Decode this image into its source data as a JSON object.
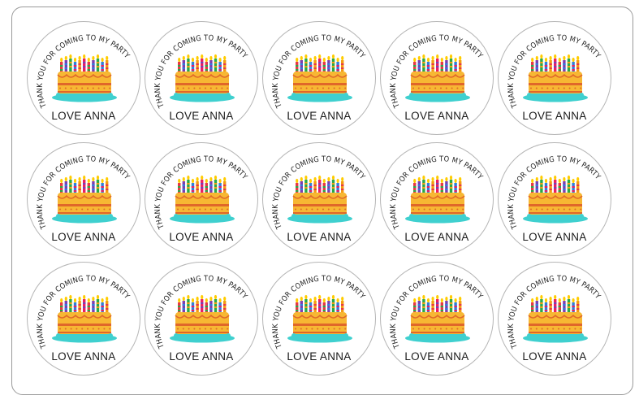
{
  "sheet": {
    "rows": 3,
    "cols": 5,
    "sticker": {
      "arc_text": "THANK YOU FOR COMING TO MY PARTY",
      "name_text": "LOVE ANNA",
      "icon": "birthday-cake-icon",
      "colors": {
        "cake_body": "#f7b733",
        "cake_stripe": "#e0672a",
        "plate": "#3fd0cf",
        "candles": [
          "#e63946",
          "#7b3fb0",
          "#2aa84a",
          "#2f7fd8",
          "#f39c12",
          "#e91e63"
        ]
      }
    }
  }
}
